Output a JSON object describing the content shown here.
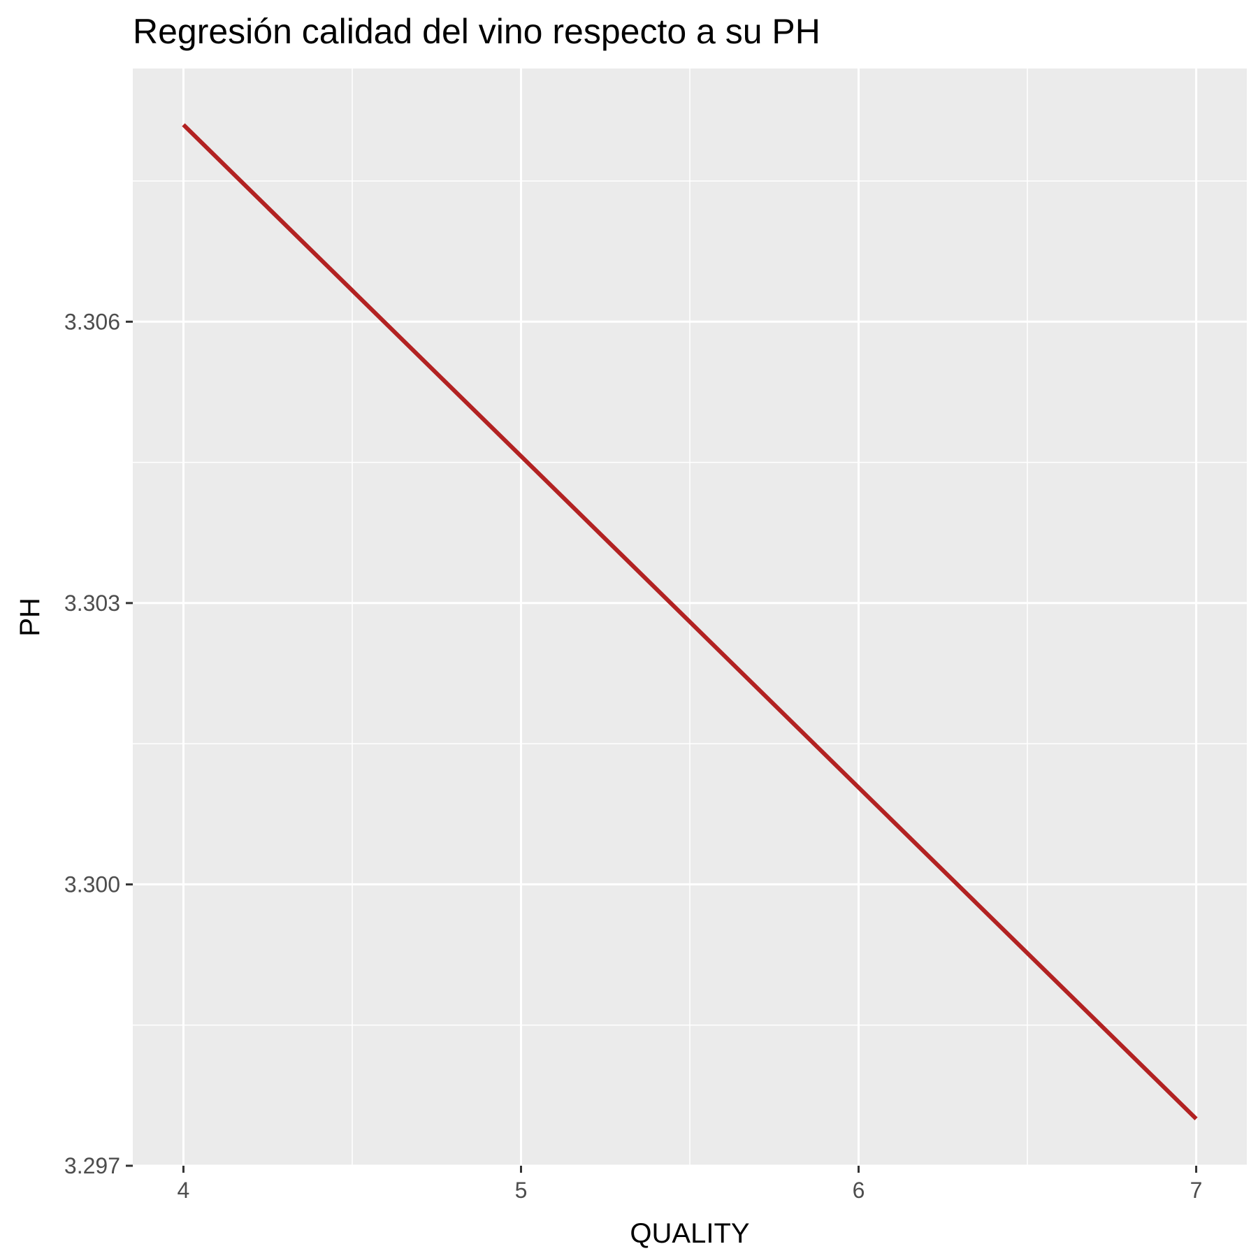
{
  "chart_data": {
    "type": "line",
    "title": "Regresión calidad del vino respecto a su PH",
    "xlabel": "QUALITY",
    "ylabel": "PH",
    "x_ticks": [
      4,
      5,
      6,
      7
    ],
    "x_tick_labels": [
      "4",
      "5",
      "6",
      "7"
    ],
    "y_ticks": [
      3.297,
      3.3,
      3.303,
      3.306
    ],
    "y_tick_labels": [
      "3.297",
      "3.300",
      "3.303",
      "3.306"
    ],
    "xlim": [
      3.85,
      7.15
    ],
    "ylim": [
      3.297,
      3.3087
    ],
    "grid": true,
    "series": [
      {
        "x": [
          4,
          7
        ],
        "y": [
          3.3081,
          3.2975
        ]
      }
    ],
    "colors": {
      "panel_background": "#ebebeb",
      "grid": "#ffffff",
      "line": "#b22222",
      "tick": "#333333"
    }
  }
}
